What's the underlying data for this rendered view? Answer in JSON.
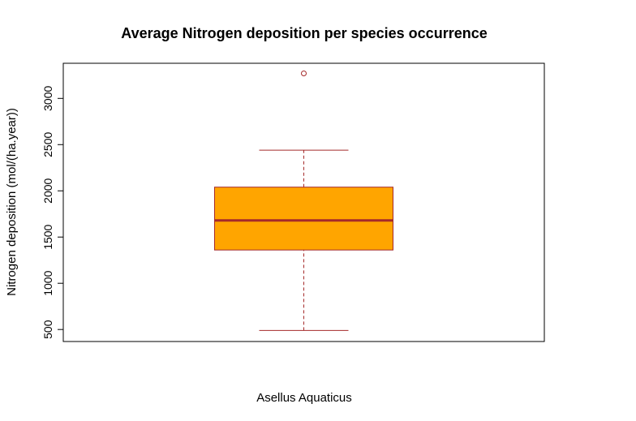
{
  "chart_data": {
    "type": "boxplot",
    "title": "Average Nitrogen deposition per species occurrence",
    "xlabel": "Asellus Aquaticus",
    "ylabel": "Nitrogen deposition (mol/(ha.year))",
    "ylim": [
      370,
      3380
    ],
    "yticks": [
      500,
      1000,
      1500,
      2000,
      2500,
      3000
    ],
    "grid": false,
    "box": {
      "min": 490,
      "q1": 1360,
      "median": 1680,
      "q3": 2040,
      "max": 2440,
      "outliers": [
        3270
      ]
    },
    "colors": {
      "box_fill": "#FFA500",
      "box_stroke": "#A52A2A",
      "median": "#A52A2A",
      "whisker": "#A52A2A",
      "outlier": "#A52A2A"
    }
  }
}
